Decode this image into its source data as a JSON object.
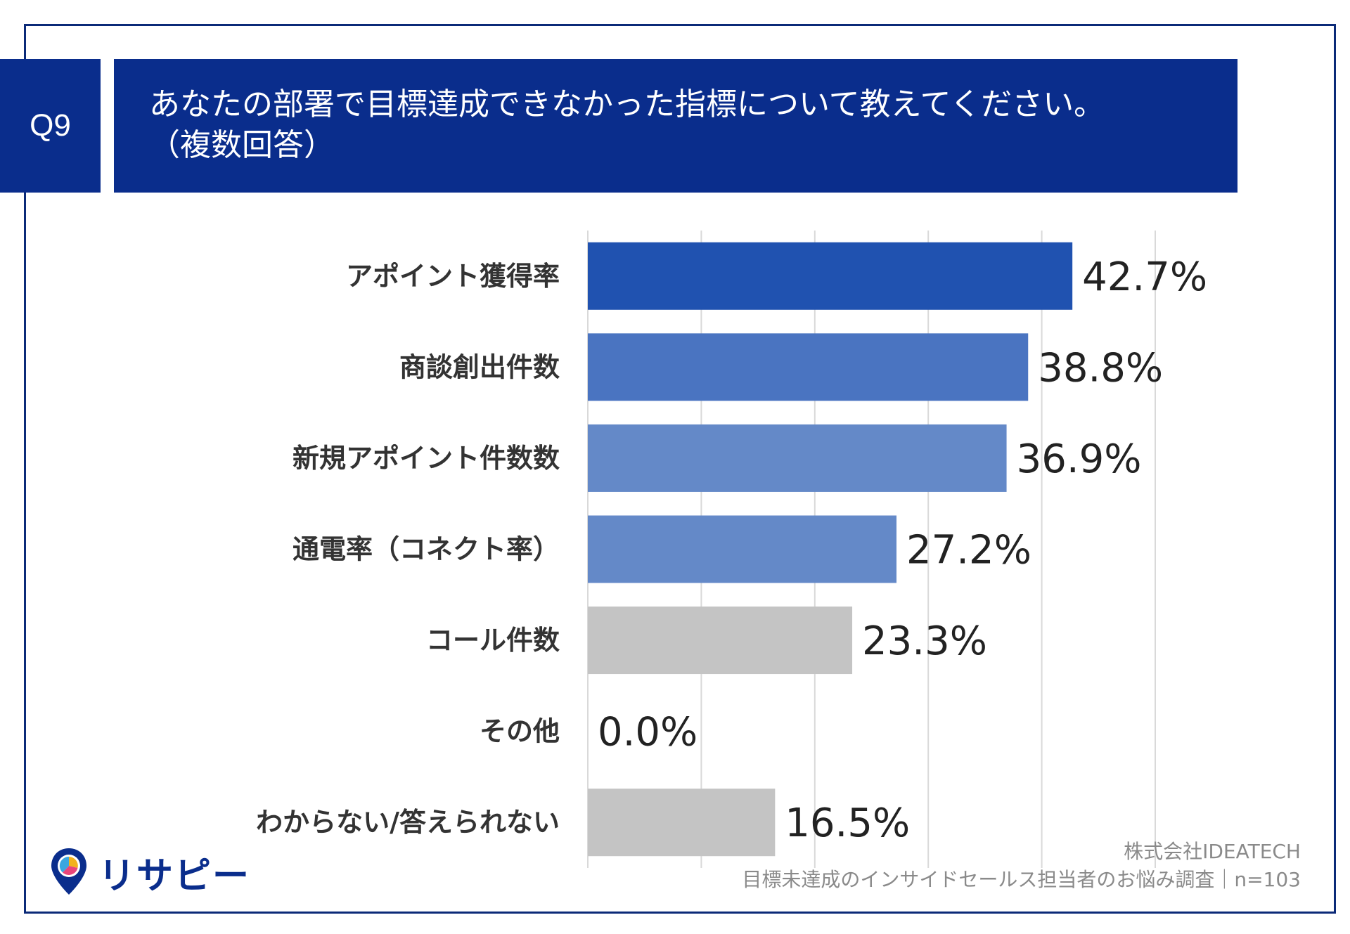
{
  "question": {
    "number": "Q9",
    "title_line1": "あなたの部署で目標達成できなかった指標について教えてください。",
    "title_line2": "（複数回答）"
  },
  "colors": {
    "frame": "#0b2a78",
    "header_bg": "#0a2d8c",
    "bar_dark": "#2052b0",
    "bar_mid": "#4a74c1",
    "bar_light": "#6489c8",
    "bar_gray": "#c4c4c4",
    "grid": "#d9d9d9"
  },
  "chart_data": {
    "type": "bar",
    "orientation": "horizontal",
    "categories": [
      "アポイント獲得率",
      "商談創出件数",
      "新規アポイント件数数",
      "通電率（コネクト率）",
      "コール件数",
      "その他",
      "わからない/答えられない"
    ],
    "values": [
      42.7,
      38.8,
      36.9,
      27.2,
      23.3,
      0.0,
      16.5
    ],
    "value_labels": [
      "42.7%",
      "38.8%",
      "36.9%",
      "27.2%",
      "23.3%",
      "0.0%",
      "16.5%"
    ],
    "bar_colors": [
      "#2052b0",
      "#4a74c1",
      "#6489c8",
      "#6489c8",
      "#c4c4c4",
      "#c4c4c4",
      "#c4c4c4"
    ],
    "xlim": [
      0,
      50
    ],
    "grid": true,
    "gridline_count": 5
  },
  "footer": {
    "company": "株式会社IDEATECH",
    "survey": "目標未達成のインサイドセールス担当者のお悩み調査｜n=103"
  },
  "logo": {
    "text": "リサピー",
    "icon": "map-pin-pie-icon"
  }
}
